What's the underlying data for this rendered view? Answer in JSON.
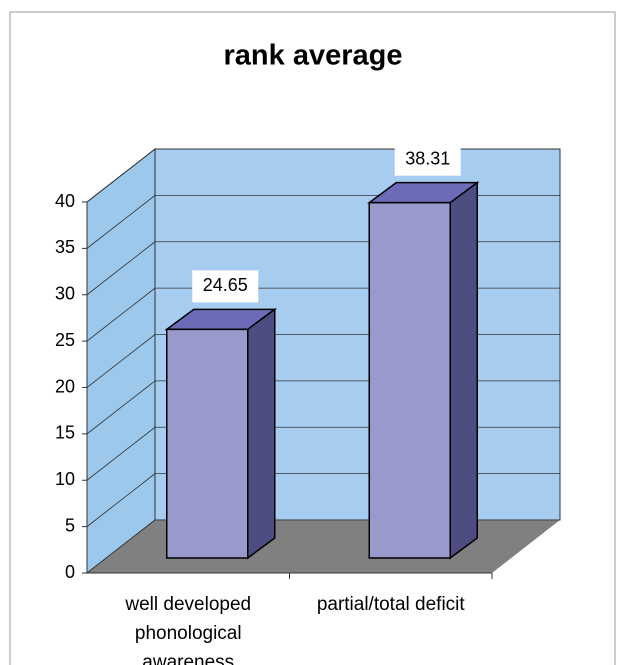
{
  "chart_data": {
    "type": "bar",
    "title": "rank average",
    "categories": [
      "well developed phonological awareness",
      "partial/total deficit"
    ],
    "values": [
      24.65,
      38.31
    ],
    "color": "#9999cc",
    "ylim": [
      0,
      40
    ],
    "yticks": [
      0,
      5,
      10,
      15,
      20,
      25,
      30,
      35,
      40
    ],
    "grid": true
  }
}
